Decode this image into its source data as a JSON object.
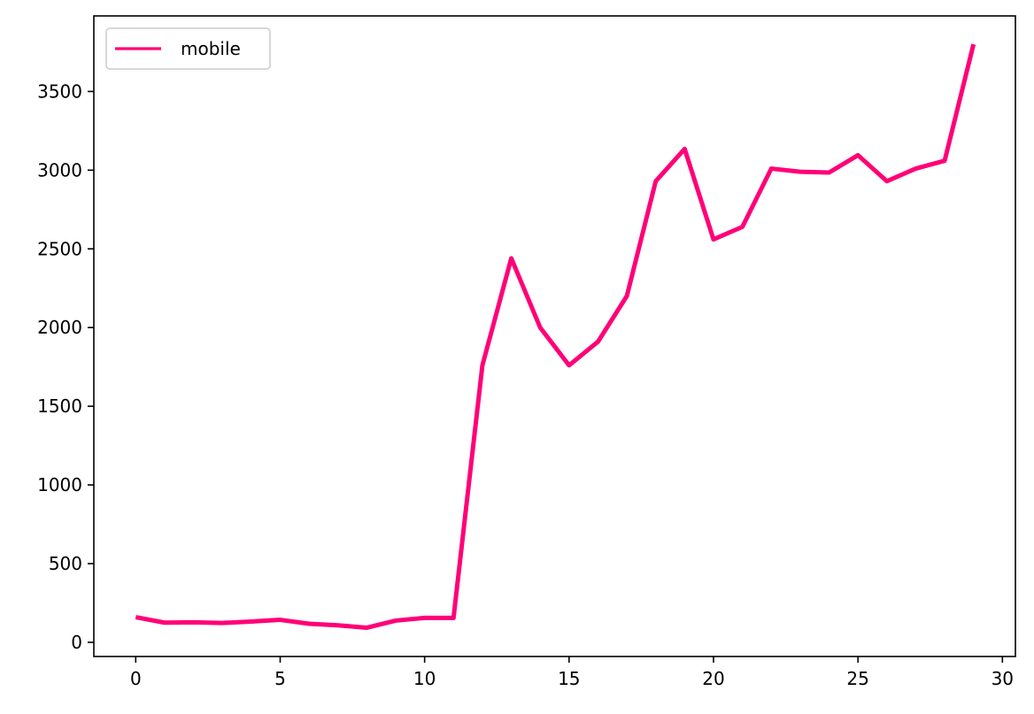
{
  "chart_data": {
    "type": "line",
    "title": "",
    "xlabel": "",
    "ylabel": "",
    "xlim": [
      -1.45,
      30.45
    ],
    "ylim": [
      -90,
      3980
    ],
    "xticks": [
      0,
      5,
      10,
      15,
      20,
      25,
      30
    ],
    "yticks": [
      0,
      500,
      1000,
      1500,
      2000,
      2500,
      3000,
      3500
    ],
    "grid": false,
    "legend_position": "top-left",
    "x": [
      0,
      1,
      2,
      3,
      4,
      5,
      6,
      7,
      8,
      9,
      10,
      11,
      12,
      13,
      14,
      15,
      16,
      17,
      18,
      19,
      20,
      21,
      22,
      23,
      24,
      25,
      26,
      27,
      28,
      29
    ],
    "series": [
      {
        "name": "mobile",
        "color": "#ff0077",
        "values": [
          160,
          125,
          127,
          123,
          132,
          143,
          118,
          108,
          93,
          138,
          155,
          155,
          1760,
          2440,
          2000,
          1760,
          1910,
          2200,
          2930,
          3135,
          2560,
          2640,
          3010,
          2990,
          2985,
          3095,
          2930,
          3010,
          3060,
          3800
        ]
      }
    ]
  }
}
